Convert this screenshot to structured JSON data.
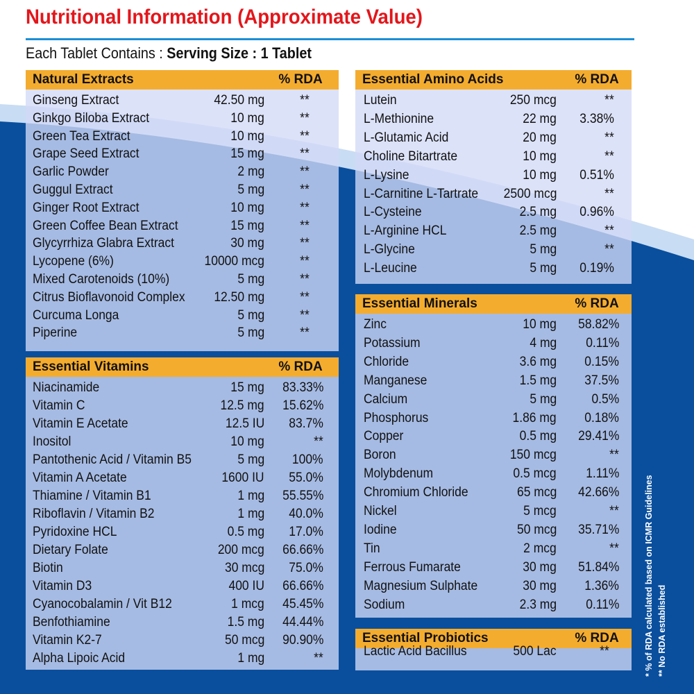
{
  "title": "Nutritional Information (Approximate Value)",
  "serving": {
    "prefix": "Each Tablet Contains :",
    "size": "Serving Size : 1 Tablet"
  },
  "footnotes": [
    "* % of RDA calculated based on ICMR Guidelines",
    "** No RDA established"
  ],
  "colors": {
    "title": "#e3161b",
    "header": "#f4ac2f",
    "panel": "#d2daf6",
    "background_wave": "#0a4f9e",
    "rule": "#1b8fd6"
  },
  "panels": [
    {
      "name": "Natural Extracts",
      "rda_label": "% RDA",
      "rows": [
        {
          "name": "Ginseng Extract",
          "amount": "42.50 mg",
          "rda": "**"
        },
        {
          "name": "Ginkgo Biloba Extract",
          "amount": "10 mg",
          "rda": "**"
        },
        {
          "name": "Green Tea Extract",
          "amount": "10 mg",
          "rda": "**"
        },
        {
          "name": "Grape Seed Extract",
          "amount": "15 mg",
          "rda": "**"
        },
        {
          "name": "Garlic Powder",
          "amount": "2 mg",
          "rda": "**"
        },
        {
          "name": "Guggul Extract",
          "amount": "5 mg",
          "rda": "**"
        },
        {
          "name": "Ginger Root Extract",
          "amount": "10 mg",
          "rda": "**"
        },
        {
          "name": "Green Coffee Bean Extract",
          "amount": "15 mg",
          "rda": "**"
        },
        {
          "name": "Glycyrrhiza Glabra Extract",
          "amount": "30 mg",
          "rda": "**"
        },
        {
          "name": "Lycopene (6%)",
          "amount": "10000 mcg",
          "rda": "**"
        },
        {
          "name": "Mixed Carotenoids (10%)",
          "amount": "5 mg",
          "rda": "**"
        },
        {
          "name": "Citrus Bioflavonoid Complex",
          "amount": "12.50 mg",
          "rda": "**"
        },
        {
          "name": "Curcuma Longa",
          "amount": "5 mg",
          "rda": "**"
        },
        {
          "name": "Piperine",
          "amount": "5 mg",
          "rda": "**"
        }
      ]
    },
    {
      "name": "Essential Vitamins",
      "rda_label": "% RDA",
      "rows": [
        {
          "name": "Niacinamide",
          "amount": "15 mg",
          "rda": "83.33%"
        },
        {
          "name": "Vitamin C",
          "amount": "12.5 mg",
          "rda": "15.62%"
        },
        {
          "name": "Vitamin E Acetate",
          "amount": "12.5 IU",
          "rda": "83.7%"
        },
        {
          "name": "Inositol",
          "amount": "10 mg",
          "rda": "**"
        },
        {
          "name": "Pantothenic Acid / Vitamin B5",
          "amount": "5 mg",
          "rda": "100%"
        },
        {
          "name": "Vitamin A Acetate",
          "amount": "1600 IU",
          "rda": "55.0%"
        },
        {
          "name": "Thiamine / Vitamin B1",
          "amount": "1 mg",
          "rda": "55.55%"
        },
        {
          "name": "Riboflavin / Vitamin B2",
          "amount": "1 mg",
          "rda": "40.0%"
        },
        {
          "name": "Pyridoxine HCL",
          "amount": "0.5 mg",
          "rda": "17.0%"
        },
        {
          "name": "Dietary Folate",
          "amount": "200 mcg",
          "rda": "66.66%"
        },
        {
          "name": "Biotin",
          "amount": "30 mcg",
          "rda": "75.0%"
        },
        {
          "name": "Vitamin D3",
          "amount": "400 IU",
          "rda": "66.66%"
        },
        {
          "name": "Cyanocobalamin / Vit B12",
          "amount": "1 mcg",
          "rda": "45.45%"
        },
        {
          "name": "Benfothiamine",
          "amount": "1.5 mg",
          "rda": "44.44%"
        },
        {
          "name": "Vitamin K2-7",
          "amount": "50 mcg",
          "rda": "90.90%"
        },
        {
          "name": "Alpha Lipoic Acid",
          "amount": "1 mg",
          "rda": "**"
        }
      ]
    },
    {
      "name": "Essential Amino Acids",
      "rda_label": "% RDA",
      "rows": [
        {
          "name": "Lutein",
          "amount": "250 mcg",
          "rda": "**"
        },
        {
          "name": "L-Methionine",
          "amount": "22 mg",
          "rda": "3.38%"
        },
        {
          "name": "L-Glutamic Acid",
          "amount": "20 mg",
          "rda": "**"
        },
        {
          "name": "Choline Bitartrate",
          "amount": "10 mg",
          "rda": "**"
        },
        {
          "name": "L-Lysine",
          "amount": "10 mg",
          "rda": "0.51%"
        },
        {
          "name": "L-Carnitine L-Tartrate",
          "amount": "2500 mcg",
          "rda": "**"
        },
        {
          "name": "L-Cysteine",
          "amount": "2.5 mg",
          "rda": "0.96%"
        },
        {
          "name": "L-Arginine HCL",
          "amount": "2.5 mg",
          "rda": "**"
        },
        {
          "name": "L-Glycine",
          "amount": "5 mg",
          "rda": "**"
        },
        {
          "name": "L-Leucine",
          "amount": "5 mg",
          "rda": "0.19%"
        }
      ]
    },
    {
      "name": "Essential Minerals",
      "rda_label": "% RDA",
      "rows": [
        {
          "name": "Zinc",
          "amount": "10 mg",
          "rda": "58.82%"
        },
        {
          "name": "Potassium",
          "amount": "4 mg",
          "rda": "0.11%"
        },
        {
          "name": "Chloride",
          "amount": "3.6 mg",
          "rda": "0.15%"
        },
        {
          "name": "Manganese",
          "amount": "1.5 mg",
          "rda": "37.5%"
        },
        {
          "name": "Calcium",
          "amount": "5 mg",
          "rda": "0.5%"
        },
        {
          "name": "Phosphorus",
          "amount": "1.86 mg",
          "rda": "0.18%"
        },
        {
          "name": "Copper",
          "amount": "0.5 mg",
          "rda": "29.41%"
        },
        {
          "name": "Boron",
          "amount": "150 mcg",
          "rda": "**"
        },
        {
          "name": "Molybdenum",
          "amount": "0.5 mcg",
          "rda": "1.11%"
        },
        {
          "name": "Chromium Chloride",
          "amount": "65 mcg",
          "rda": "42.66%"
        },
        {
          "name": "Nickel",
          "amount": "5 mcg",
          "rda": "**"
        },
        {
          "name": "Iodine",
          "amount": "50 mcg",
          "rda": "35.71%"
        },
        {
          "name": "Tin",
          "amount": "2 mcg",
          "rda": "**"
        },
        {
          "name": "Ferrous Fumarate",
          "amount": "30 mg",
          "rda": "51.84%"
        },
        {
          "name": "Magnesium Sulphate",
          "amount": "30 mg",
          "rda": "1.36%"
        },
        {
          "name": "Sodium",
          "amount": "2.3 mg",
          "rda": "0.11%"
        }
      ]
    },
    {
      "name": "Essential Probiotics",
      "rda_label": "% RDA",
      "rows": [
        {
          "name": "Lactic Acid Bacillus",
          "amount": "500 Lac",
          "rda": "**"
        }
      ]
    }
  ]
}
